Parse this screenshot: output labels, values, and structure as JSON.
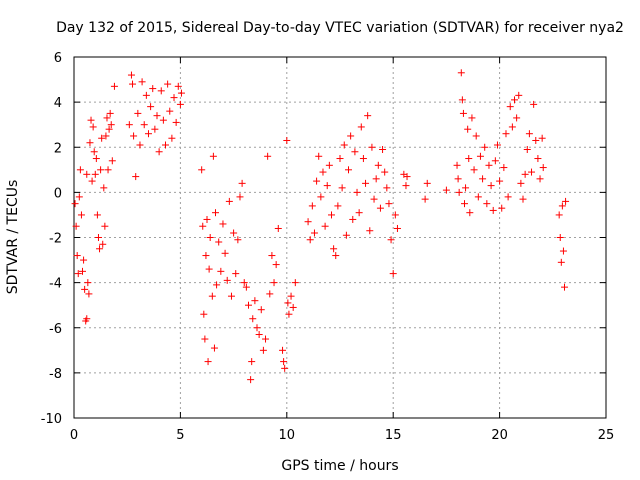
{
  "chart_data": {
    "type": "scatter",
    "title": "Day 132 of 2015, Sidereal Day-to-day VTEC variation (SDTVAR) for receiver nya2",
    "xlabel": "GPS time / hours",
    "ylabel": "SDTVAR / TECUs",
    "xlim": [
      0,
      25
    ],
    "ylim": [
      -10,
      6
    ],
    "xticks": [
      0,
      5,
      10,
      15,
      20,
      25
    ],
    "yticks": [
      -10,
      -8,
      -6,
      -4,
      -2,
      0,
      2,
      4,
      6
    ],
    "xtick_labels": [
      "0",
      "5",
      "10",
      "15",
      "20",
      "25"
    ],
    "ytick_labels": [
      "-10",
      "-8",
      "-6",
      "-4",
      "-2",
      "0",
      "2",
      "4",
      "6"
    ],
    "grid": true,
    "marker": "+",
    "color": "#ff0000",
    "series": [
      {
        "name": "SDTVAR",
        "points": [
          [
            0.05,
            -0.5
          ],
          [
            0.1,
            -1.5
          ],
          [
            0.15,
            -2.8
          ],
          [
            0.2,
            -3.6
          ],
          [
            0.25,
            -0.2
          ],
          [
            0.3,
            1.0
          ],
          [
            0.35,
            -1.0
          ],
          [
            0.4,
            -3.5
          ],
          [
            0.45,
            -3.0
          ],
          [
            0.5,
            -4.3
          ],
          [
            0.55,
            -5.7
          ],
          [
            0.6,
            -5.6
          ],
          [
            0.6,
            0.8
          ],
          [
            0.65,
            -4.0
          ],
          [
            0.7,
            -4.5
          ],
          [
            0.75,
            2.2
          ],
          [
            0.8,
            3.2
          ],
          [
            0.85,
            0.5
          ],
          [
            0.9,
            2.9
          ],
          [
            0.95,
            1.8
          ],
          [
            1.0,
            0.8
          ],
          [
            1.05,
            1.5
          ],
          [
            1.1,
            -1.0
          ],
          [
            1.15,
            -2.0
          ],
          [
            1.2,
            -2.5
          ],
          [
            1.25,
            1.0
          ],
          [
            1.3,
            2.4
          ],
          [
            1.35,
            -2.3
          ],
          [
            1.4,
            0.2
          ],
          [
            1.45,
            -1.5
          ],
          [
            1.5,
            2.5
          ],
          [
            1.55,
            3.3
          ],
          [
            1.6,
            1.0
          ],
          [
            1.65,
            2.8
          ],
          [
            1.7,
            3.5
          ],
          [
            1.75,
            3.0
          ],
          [
            1.8,
            1.4
          ],
          [
            1.9,
            4.7
          ],
          [
            2.6,
            3.0
          ],
          [
            2.7,
            5.2
          ],
          [
            2.75,
            4.8
          ],
          [
            2.8,
            2.5
          ],
          [
            2.9,
            0.7
          ],
          [
            3.0,
            3.5
          ],
          [
            3.1,
            2.1
          ],
          [
            3.2,
            4.9
          ],
          [
            3.3,
            3.0
          ],
          [
            3.4,
            4.3
          ],
          [
            3.5,
            2.6
          ],
          [
            3.6,
            3.8
          ],
          [
            3.7,
            4.6
          ],
          [
            3.8,
            2.8
          ],
          [
            3.9,
            3.4
          ],
          [
            4.0,
            1.8
          ],
          [
            4.1,
            4.5
          ],
          [
            4.2,
            3.2
          ],
          [
            4.3,
            2.1
          ],
          [
            4.4,
            4.8
          ],
          [
            4.5,
            3.6
          ],
          [
            4.6,
            2.4
          ],
          [
            4.7,
            4.2
          ],
          [
            4.8,
            3.1
          ],
          [
            4.9,
            4.7
          ],
          [
            5.0,
            3.9
          ],
          [
            5.05,
            4.4
          ],
          [
            6.0,
            1.0
          ],
          [
            6.05,
            -1.5
          ],
          [
            6.1,
            -5.4
          ],
          [
            6.15,
            -6.5
          ],
          [
            6.2,
            -2.8
          ],
          [
            6.25,
            -1.2
          ],
          [
            6.3,
            -7.5
          ],
          [
            6.35,
            -3.4
          ],
          [
            6.4,
            -2.0
          ],
          [
            6.5,
            -4.6
          ],
          [
            6.55,
            1.6
          ],
          [
            6.6,
            -6.9
          ],
          [
            6.65,
            -0.9
          ],
          [
            6.7,
            -4.1
          ],
          [
            6.8,
            -2.2
          ],
          [
            6.9,
            -3.5
          ],
          [
            7.0,
            -1.4
          ],
          [
            7.1,
            -2.7
          ],
          [
            7.2,
            -3.9
          ],
          [
            7.3,
            -0.4
          ],
          [
            7.4,
            -4.6
          ],
          [
            7.5,
            -1.8
          ],
          [
            7.6,
            -3.6
          ],
          [
            7.7,
            -2.1
          ],
          [
            7.8,
            -0.2
          ],
          [
            7.9,
            0.4
          ],
          [
            8.0,
            -4.0
          ],
          [
            8.1,
            -4.2
          ],
          [
            8.2,
            -5.0
          ],
          [
            8.3,
            -8.3
          ],
          [
            8.35,
            -7.5
          ],
          [
            8.4,
            -5.6
          ],
          [
            8.5,
            -4.8
          ],
          [
            8.6,
            -6.0
          ],
          [
            8.7,
            -6.3
          ],
          [
            8.8,
            -5.2
          ],
          [
            8.9,
            -7.0
          ],
          [
            9.0,
            -6.5
          ],
          [
            9.1,
            1.6
          ],
          [
            9.2,
            -4.5
          ],
          [
            9.3,
            -2.8
          ],
          [
            9.4,
            -4.0
          ],
          [
            9.5,
            -3.2
          ],
          [
            9.6,
            -1.6
          ],
          [
            9.8,
            -7.0
          ],
          [
            9.85,
            -7.5
          ],
          [
            9.9,
            -7.8
          ],
          [
            10.0,
            2.3
          ],
          [
            10.05,
            -4.9
          ],
          [
            10.1,
            -5.4
          ],
          [
            10.2,
            -4.6
          ],
          [
            10.3,
            -5.1
          ],
          [
            10.4,
            -4.0
          ],
          [
            11.0,
            -1.3
          ],
          [
            11.1,
            -2.1
          ],
          [
            11.2,
            -0.6
          ],
          [
            11.3,
            -1.8
          ],
          [
            11.4,
            0.5
          ],
          [
            11.5,
            1.6
          ],
          [
            11.6,
            -0.2
          ],
          [
            11.7,
            0.9
          ],
          [
            11.8,
            -1.5
          ],
          [
            11.9,
            0.3
          ],
          [
            12.0,
            1.2
          ],
          [
            12.1,
            -1.0
          ],
          [
            12.2,
            -2.5
          ],
          [
            12.3,
            -2.8
          ],
          [
            12.4,
            -0.6
          ],
          [
            12.5,
            1.5
          ],
          [
            12.6,
            0.2
          ],
          [
            12.7,
            2.1
          ],
          [
            12.8,
            -1.9
          ],
          [
            12.9,
            1.0
          ],
          [
            13.0,
            2.5
          ],
          [
            13.1,
            -1.2
          ],
          [
            13.2,
            1.8
          ],
          [
            13.3,
            0.0
          ],
          [
            13.4,
            -0.9
          ],
          [
            13.5,
            2.9
          ],
          [
            13.6,
            1.5
          ],
          [
            13.7,
            0.4
          ],
          [
            13.8,
            3.4
          ],
          [
            13.9,
            -1.7
          ],
          [
            14.0,
            2.0
          ],
          [
            14.1,
            -0.3
          ],
          [
            14.2,
            0.6
          ],
          [
            14.3,
            1.2
          ],
          [
            14.4,
            -0.7
          ],
          [
            14.5,
            1.9
          ],
          [
            14.6,
            0.9
          ],
          [
            14.7,
            0.2
          ],
          [
            14.8,
            -0.5
          ],
          [
            14.9,
            -2.1
          ],
          [
            15.0,
            -3.6
          ],
          [
            15.1,
            -1.0
          ],
          [
            15.2,
            -1.6
          ],
          [
            15.5,
            0.8
          ],
          [
            15.6,
            0.3
          ],
          [
            15.65,
            0.7
          ],
          [
            16.5,
            -0.3
          ],
          [
            16.6,
            0.4
          ],
          [
            17.5,
            0.1
          ],
          [
            18.0,
            1.2
          ],
          [
            18.05,
            0.6
          ],
          [
            18.1,
            0.0
          ],
          [
            18.2,
            5.3
          ],
          [
            18.25,
            4.1
          ],
          [
            18.3,
            3.5
          ],
          [
            18.35,
            -0.5
          ],
          [
            18.4,
            0.2
          ],
          [
            18.5,
            2.8
          ],
          [
            18.55,
            1.5
          ],
          [
            18.6,
            -0.9
          ],
          [
            18.7,
            3.3
          ],
          [
            18.8,
            1.0
          ],
          [
            18.9,
            2.5
          ],
          [
            19.0,
            -0.2
          ],
          [
            19.1,
            1.6
          ],
          [
            19.2,
            0.6
          ],
          [
            19.3,
            2.0
          ],
          [
            19.4,
            -0.5
          ],
          [
            19.5,
            1.2
          ],
          [
            19.6,
            0.3
          ],
          [
            19.7,
            -0.8
          ],
          [
            19.8,
            1.4
          ],
          [
            19.9,
            2.1
          ],
          [
            20.0,
            0.5
          ],
          [
            20.1,
            -0.7
          ],
          [
            20.2,
            1.1
          ],
          [
            20.3,
            2.6
          ],
          [
            20.4,
            -0.2
          ],
          [
            20.5,
            3.8
          ],
          [
            20.6,
            2.9
          ],
          [
            20.7,
            4.1
          ],
          [
            20.8,
            3.3
          ],
          [
            20.9,
            4.3
          ],
          [
            21.0,
            0.4
          ],
          [
            21.1,
            -0.3
          ],
          [
            21.2,
            0.8
          ],
          [
            21.3,
            1.9
          ],
          [
            21.4,
            2.6
          ],
          [
            21.5,
            0.9
          ],
          [
            21.6,
            3.9
          ],
          [
            21.7,
            2.3
          ],
          [
            21.8,
            1.5
          ],
          [
            21.9,
            0.6
          ],
          [
            22.0,
            2.4
          ],
          [
            22.05,
            1.1
          ],
          [
            22.8,
            -1.0
          ],
          [
            22.85,
            -2.0
          ],
          [
            22.9,
            -3.1
          ],
          [
            22.95,
            -0.6
          ],
          [
            23.0,
            -2.6
          ],
          [
            23.05,
            -4.2
          ],
          [
            23.1,
            -0.4
          ]
        ]
      }
    ]
  }
}
